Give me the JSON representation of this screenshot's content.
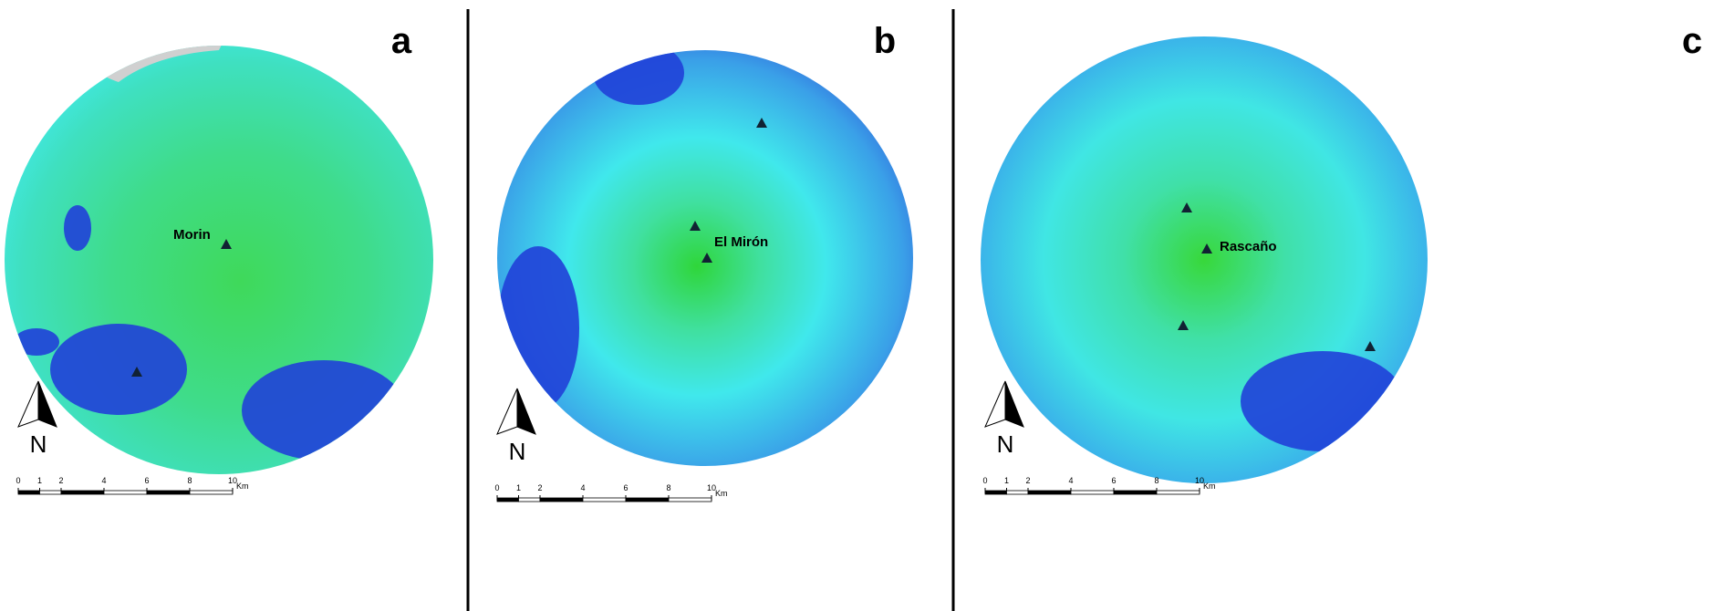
{
  "panels": [
    {
      "letter": "a",
      "site": "Morin",
      "north": "N",
      "scale": {
        "ticks": [
          0,
          1,
          2,
          4,
          6,
          8,
          10
        ],
        "unit": "Km"
      }
    },
    {
      "letter": "b",
      "site": "El Mirón",
      "north": "N",
      "scale": {
        "ticks": [
          0,
          1,
          2,
          4,
          6,
          8,
          10
        ],
        "unit": "Km"
      }
    },
    {
      "letter": "c",
      "site": "Rascaño",
      "north": "N",
      "scale": {
        "ticks": [
          0,
          1,
          2,
          4,
          6,
          8,
          10
        ],
        "unit": "Km"
      }
    }
  ]
}
